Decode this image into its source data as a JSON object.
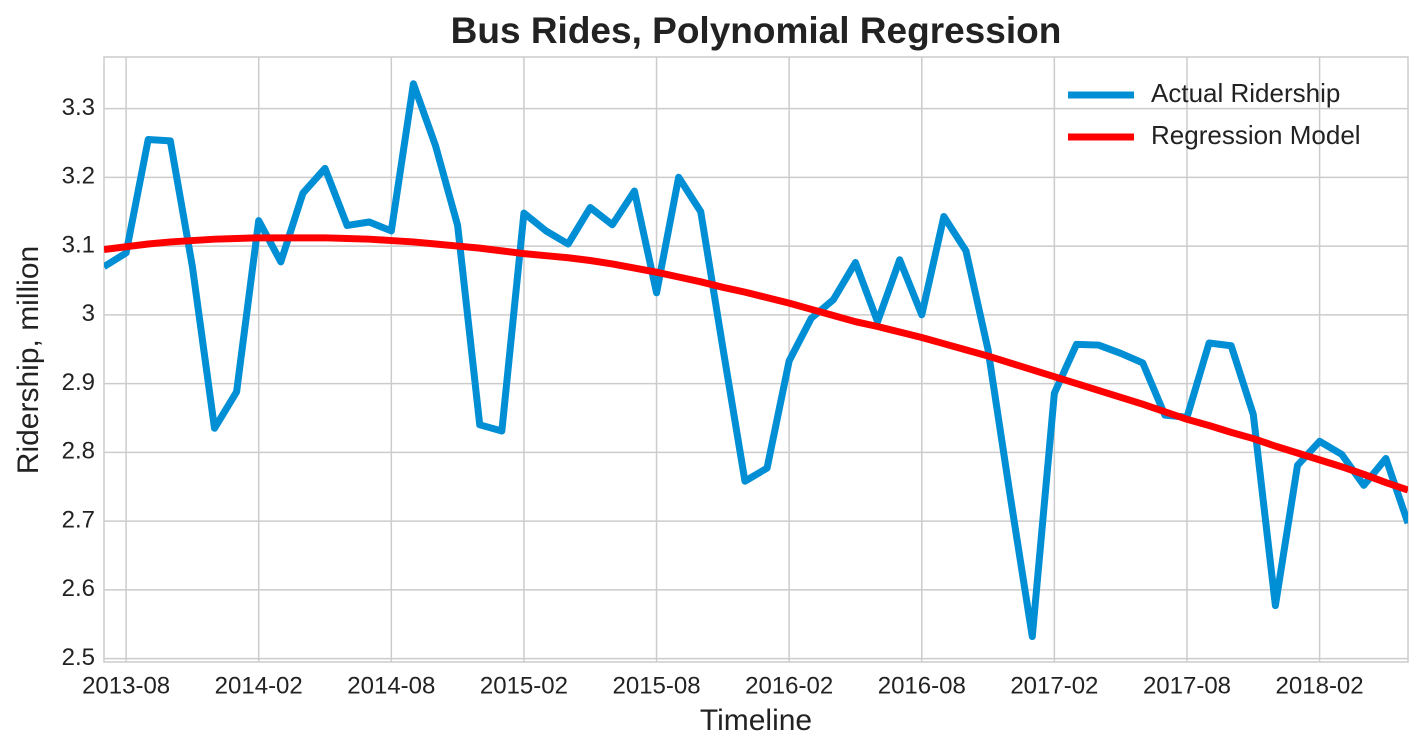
{
  "chart_data": {
    "type": "line",
    "title": "Bus Rides, Polynomial Regression",
    "xlabel": "Timeline",
    "ylabel": "Ridership, million",
    "x": [
      "2013-07",
      "2013-08",
      "2013-09",
      "2013-10",
      "2013-11",
      "2013-12",
      "2014-01",
      "2014-02",
      "2014-03",
      "2014-04",
      "2014-05",
      "2014-06",
      "2014-07",
      "2014-08",
      "2014-09",
      "2014-10",
      "2014-11",
      "2014-12",
      "2015-01",
      "2015-02",
      "2015-03",
      "2015-04",
      "2015-05",
      "2015-06",
      "2015-07",
      "2015-08",
      "2015-09",
      "2015-10",
      "2015-11",
      "2015-12",
      "2016-01",
      "2016-02",
      "2016-03",
      "2016-04",
      "2016-05",
      "2016-06",
      "2016-07",
      "2016-08",
      "2016-09",
      "2016-10",
      "2016-11",
      "2016-12",
      "2017-01",
      "2017-02",
      "2017-03",
      "2017-04",
      "2017-05",
      "2017-06",
      "2017-07",
      "2017-08",
      "2017-09",
      "2017-10",
      "2017-11",
      "2017-12",
      "2018-01",
      "2018-02",
      "2018-03",
      "2018-04",
      "2018-05",
      "2018-06"
    ],
    "series": [
      {
        "name": "Actual Ridership",
        "color": "#008fd5",
        "values": [
          3.07,
          3.09,
          3.255,
          3.253,
          3.07,
          2.835,
          2.888,
          3.137,
          3.077,
          3.177,
          3.213,
          3.13,
          3.135,
          3.122,
          3.336,
          3.246,
          3.13,
          2.84,
          2.831,
          3.148,
          3.122,
          3.103,
          3.156,
          3.131,
          3.18,
          3.032,
          3.2,
          3.15,
          2.952,
          2.758,
          2.777,
          2.933,
          2.995,
          3.022,
          3.076,
          2.99,
          3.08,
          3.0,
          3.143,
          3.093,
          2.949,
          2.737,
          2.532,
          2.886,
          2.957,
          2.956,
          2.944,
          2.93,
          2.854,
          2.851,
          2.959,
          2.955,
          2.855,
          2.577,
          2.781,
          2.816,
          2.797,
          2.752,
          2.791,
          2.697
        ]
      },
      {
        "name": "Regression Model",
        "color": "#ff0000",
        "values": [
          3.095,
          3.099,
          3.103,
          3.106,
          3.108,
          3.11,
          3.111,
          3.112,
          3.112,
          3.112,
          3.112,
          3.111,
          3.11,
          3.108,
          3.106,
          3.103,
          3.1,
          3.097,
          3.093,
          3.089,
          3.086,
          3.083,
          3.079,
          3.074,
          3.068,
          3.062,
          3.055,
          3.048,
          3.04,
          3.033,
          3.025,
          3.017,
          3.008,
          2.999,
          2.99,
          2.983,
          2.975,
          2.967,
          2.958,
          2.949,
          2.94,
          2.93,
          2.92,
          2.91,
          2.9,
          2.89,
          2.88,
          2.87,
          2.859,
          2.848,
          2.839,
          2.829,
          2.82,
          2.809,
          2.799,
          2.789,
          2.779,
          2.768,
          2.756,
          2.745
        ]
      }
    ],
    "xlim": [
      "2013-07",
      "2018-06"
    ],
    "xticks": [
      "2013-08",
      "2014-02",
      "2014-08",
      "2015-02",
      "2015-08",
      "2016-02",
      "2016-08",
      "2017-02",
      "2017-08",
      "2018-02"
    ],
    "ylim": [
      2.495,
      3.375
    ],
    "yticks": [
      2.5,
      2.6,
      2.7,
      2.8,
      2.9,
      3,
      3.1,
      3.2,
      3.3
    ],
    "grid": true,
    "legend": "upper right"
  }
}
